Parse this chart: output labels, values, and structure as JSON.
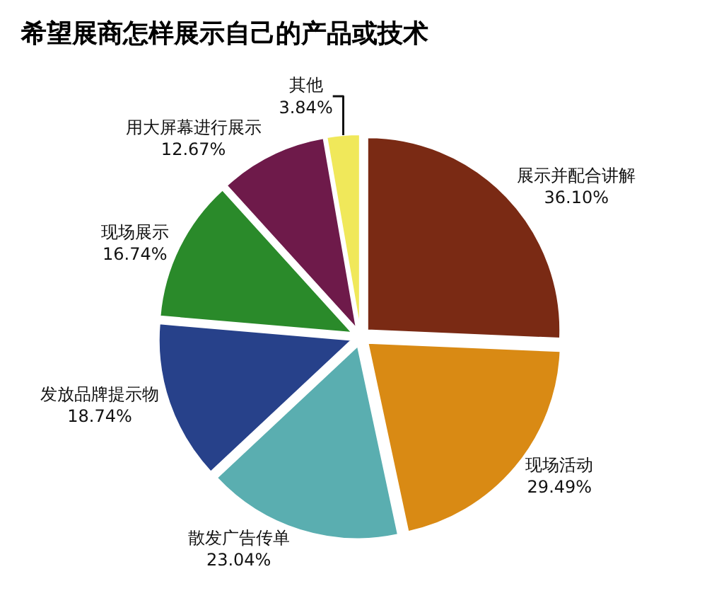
{
  "chart_data": {
    "type": "pie",
    "title": "希望展商怎样展示自己的产品或技术",
    "categories": [
      "展示并配合讲解",
      "现场活动",
      "散发广告传单",
      "发放品牌提示物",
      "现场展示",
      "用大屏幕进行展示",
      "其他"
    ],
    "values": [
      36.1,
      29.49,
      23.04,
      18.74,
      16.74,
      12.67,
      3.84
    ],
    "value_labels": [
      "36.10%",
      "29.49%",
      "23.04%",
      "18.74%",
      "16.74%",
      "12.67%",
      "3.84%"
    ],
    "colors": [
      "#7a2a14",
      "#d98a14",
      "#5aaeb0",
      "#27418a",
      "#2a8a2a",
      "#6e1a4a",
      "#f0e85a"
    ],
    "legend": false
  }
}
